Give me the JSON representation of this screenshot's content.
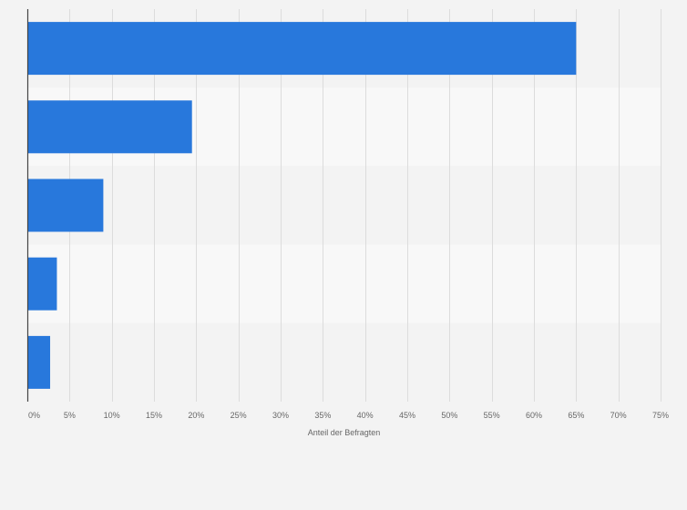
{
  "chart_data": {
    "type": "bar",
    "orientation": "horizontal",
    "categories": [
      "",
      "",
      "",
      "",
      ""
    ],
    "values": [
      65,
      19.5,
      9,
      3.5,
      2.7
    ],
    "bar_color": "#2878dc",
    "xlabel": "Anteil der Befragten",
    "ylabel": "",
    "xlim": [
      0,
      75
    ],
    "x_ticks": [
      0,
      5,
      10,
      15,
      20,
      25,
      30,
      35,
      40,
      45,
      50,
      55,
      60,
      65,
      70,
      75
    ],
    "x_tick_labels": [
      "0%",
      "5%",
      "10%",
      "15%",
      "20%",
      "25%",
      "30%",
      "35%",
      "40%",
      "45%",
      "50%",
      "55%",
      "60%",
      "65%",
      "70%",
      "75%"
    ],
    "grid": true,
    "legend": "none"
  },
  "colors": {
    "background": "#f3f3f3",
    "band_alt": "#f8f8f8",
    "gridline": "#dcdcdc",
    "axis": "#444444",
    "text": "#666666"
  }
}
